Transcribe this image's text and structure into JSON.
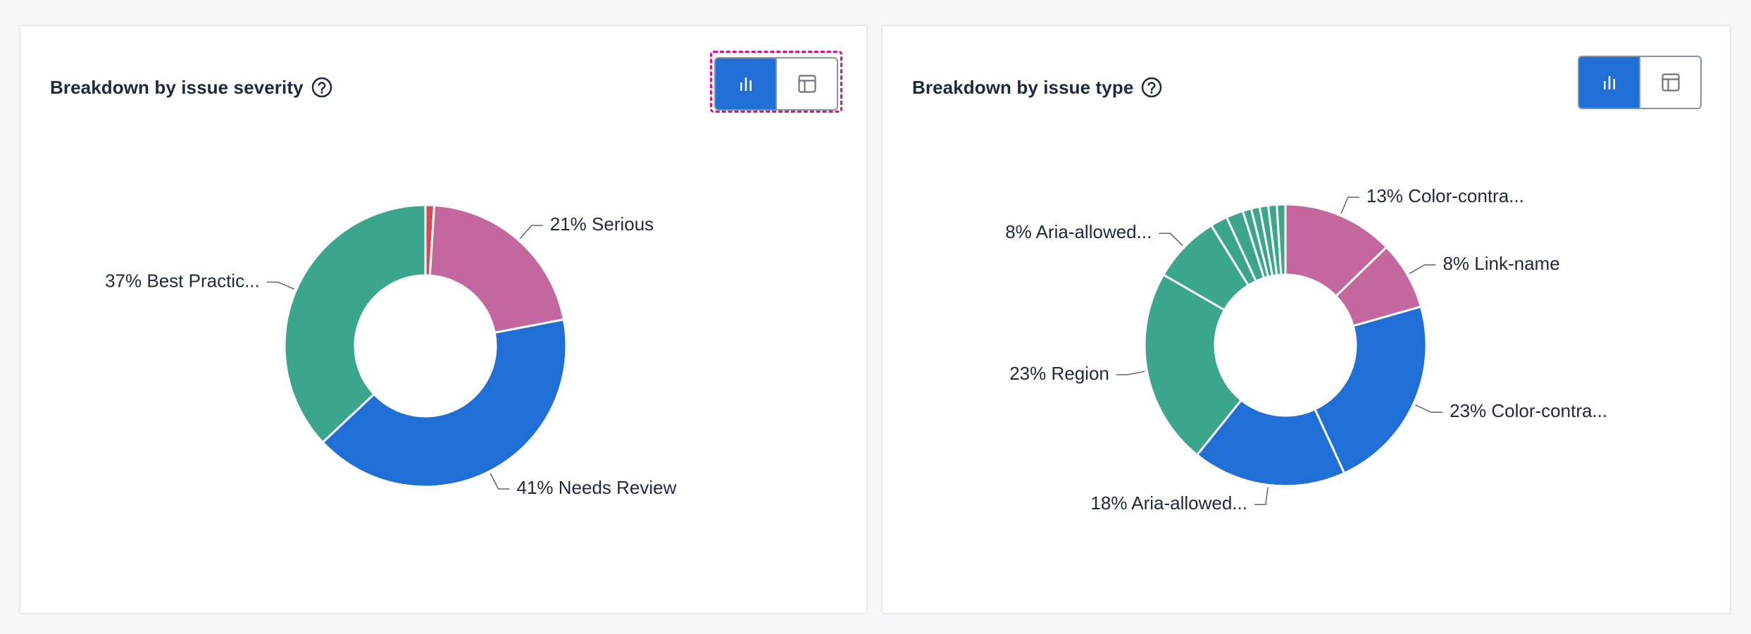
{
  "colors": {
    "blue": "#1f6fd6",
    "green": "#3ba68c",
    "pink": "#c4679e",
    "red": "#d44a5a",
    "focus": "#d4148a"
  },
  "cards": [
    {
      "title": "Breakdown by issue severity",
      "help_icon": "question-circle-icon",
      "toggle": {
        "chart_icon": "bar-chart-icon",
        "table_icon": "table-icon",
        "active": "chart"
      }
    },
    {
      "title": "Breakdown by issue type",
      "help_icon": "question-circle-icon",
      "toggle": {
        "chart_icon": "bar-chart-icon",
        "table_icon": "table-icon",
        "active": "chart"
      }
    }
  ],
  "chart_data": [
    {
      "type": "pie",
      "title": "Breakdown by issue severity",
      "donut": true,
      "slices": [
        {
          "value": 1,
          "color": "#d44a5a",
          "label": ""
        },
        {
          "value": 21,
          "color": "#c4679e",
          "label": "21% Serious"
        },
        {
          "value": 41,
          "color": "#1f6fd6",
          "label": "41% Needs Review"
        },
        {
          "value": 37,
          "color": "#3ba68c",
          "label": "37% Best Practic..."
        }
      ]
    },
    {
      "type": "pie",
      "title": "Breakdown by issue type",
      "donut": true,
      "slices": [
        {
          "value": 13,
          "color": "#c4679e",
          "label": "13% Color-contra..."
        },
        {
          "value": 8,
          "color": "#c4679e",
          "label": "8% Link-name"
        },
        {
          "value": 23,
          "color": "#1f6fd6",
          "label": "23% Color-contra..."
        },
        {
          "value": 18,
          "color": "#1f6fd6",
          "label": "18% Aria-allowed..."
        },
        {
          "value": 23,
          "color": "#3ba68c",
          "label": "23% Region"
        },
        {
          "value": 8,
          "color": "#3ba68c",
          "label": "8% Aria-allowed..."
        },
        {
          "value": 2,
          "color": "#3ba68c",
          "label": ""
        },
        {
          "value": 2,
          "color": "#3ba68c",
          "label": ""
        },
        {
          "value": 1,
          "color": "#3ba68c",
          "label": ""
        },
        {
          "value": 1,
          "color": "#3ba68c",
          "label": ""
        },
        {
          "value": 1,
          "color": "#3ba68c",
          "label": ""
        },
        {
          "value": 1,
          "color": "#3ba68c",
          "label": ""
        },
        {
          "value": 1,
          "color": "#3ba68c",
          "label": ""
        }
      ]
    }
  ]
}
